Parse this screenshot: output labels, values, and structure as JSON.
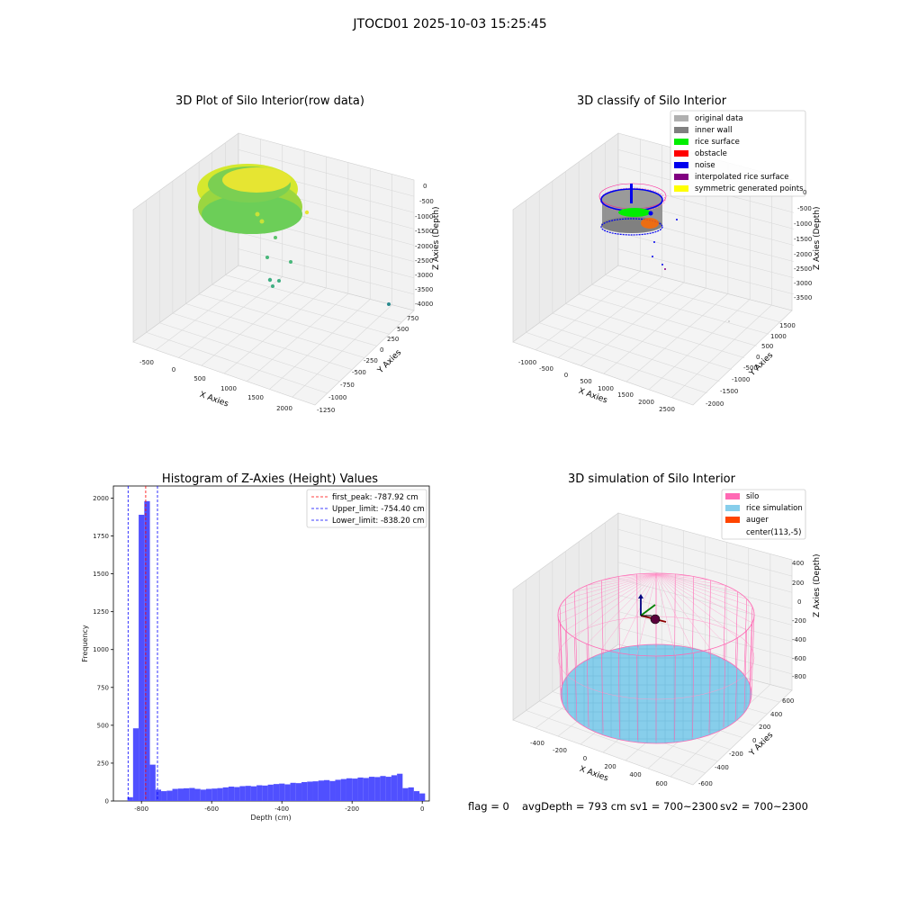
{
  "suptitle": "JTOCD01 2025-10-03 15:25:45",
  "panel_tl": {
    "title": "3D Plot of Silo Interior(row data)",
    "xlabel": "X Axies",
    "ylabel": "Y Axies",
    "zlabel": "Z Axies (Depth)",
    "xticks": [
      "-500",
      "0",
      "500",
      "1000",
      "1500",
      "2000"
    ],
    "yticks": [
      "-1250",
      "-1000",
      "-750",
      "-500",
      "-250",
      "0",
      "250",
      "500",
      "750"
    ],
    "zticks": [
      "0",
      "-500",
      "-1000",
      "-1500",
      "-2000",
      "-2500",
      "-3000",
      "-3500",
      "-4000"
    ]
  },
  "panel_tr": {
    "title": "3D classify of Silo Interior",
    "xlabel": "X Axies",
    "ylabel": "Y Axies",
    "zlabel": "Z Axies (Depth)",
    "xticks": [
      "-1000",
      "-500",
      "0",
      "500",
      "1000",
      "1500",
      "2000",
      "2500"
    ],
    "yticks": [
      "-2000",
      "-1500",
      "-1000",
      "-500",
      "0",
      "500",
      "1000",
      "1500"
    ],
    "zticks": [
      "0",
      "-500",
      "-1000",
      "-1500",
      "-2000",
      "-2500",
      "-3000",
      "-3500"
    ],
    "legend": [
      {
        "label": "original data",
        "color": "#b0b0b0"
      },
      {
        "label": "inner wall",
        "color": "#808080"
      },
      {
        "label": "rice surface",
        "color": "#00ee00"
      },
      {
        "label": "obstacle",
        "color": "#ff0000"
      },
      {
        "label": "noise",
        "color": "#0000ee"
      },
      {
        "label": "interpolated rice surface",
        "color": "#800080"
      },
      {
        "label": "symmetric generated points",
        "color": "#ffff00"
      }
    ]
  },
  "panel_bl": {
    "title": "Histogram of Z-Axies (Height) Values",
    "xlabel": "Depth (cm)",
    "ylabel": "Frequency",
    "xticks": [
      "-800",
      "-600",
      "-400",
      "-200",
      "0"
    ],
    "yticks": [
      "0",
      "250",
      "500",
      "750",
      "1000",
      "1250",
      "1500",
      "1750",
      "2000"
    ],
    "legend": [
      {
        "label": "first_peak: -787.92 cm",
        "color": "#ff0000"
      },
      {
        "label": "Upper_limit: -754.40 cm",
        "color": "#0000ff"
      },
      {
        "label": "Lower_limit: -838.20 cm",
        "color": "#0000ff"
      }
    ]
  },
  "panel_br": {
    "title": "3D simulation of Silo Interior",
    "xlabel": "X Axies",
    "ylabel": "Y Axies",
    "zlabel": "Z Axies (Depth)",
    "xticks": [
      "-400",
      "-200",
      "0",
      "200",
      "400",
      "600"
    ],
    "yticks": [
      "-600",
      "-400",
      "-200",
      "0",
      "200",
      "400",
      "600"
    ],
    "zticks": [
      "400",
      "200",
      "0",
      "-200",
      "-400",
      "-600",
      "-800"
    ],
    "legend": [
      {
        "label": "silo",
        "color": "#ff69b4"
      },
      {
        "label": "rice simulation",
        "color": "#87ceeb"
      },
      {
        "label": "auger",
        "color": "#ff4500"
      },
      {
        "label": "center(113,-5)",
        "color": "#ffffff"
      }
    ]
  },
  "footer": {
    "flag": "flag = 0",
    "avg": "avgDepth = 793 cm",
    "sv1": "sv1 = 700~2300",
    "sv2": "sv2 = 700~2300"
  },
  "chart_data": [
    {
      "type": "scatter",
      "title": "3D Plot of Silo Interior(row data)",
      "xlabel": "X Axies",
      "ylabel": "Y Axies",
      "zlabel": "Z Axies (Depth)",
      "xlim": [
        -600,
        2200
      ],
      "ylim": [
        -1300,
        800
      ],
      "zlim": [
        -4000,
        0
      ]
    },
    {
      "type": "scatter",
      "title": "3D classify of Silo Interior",
      "xlabel": "X Axies",
      "ylabel": "Y Axies",
      "zlabel": "Z Axies (Depth)",
      "xlim": [
        -1100,
        2700
      ],
      "ylim": [
        -2100,
        1700
      ],
      "zlim": [
        -3700,
        0
      ],
      "series": [
        {
          "name": "original data"
        },
        {
          "name": "inner wall"
        },
        {
          "name": "rice surface"
        },
        {
          "name": "obstacle"
        },
        {
          "name": "noise"
        },
        {
          "name": "interpolated rice surface"
        },
        {
          "name": "symmetric generated points"
        }
      ]
    },
    {
      "type": "bar",
      "title": "Histogram of Z-Axies (Height) Values",
      "xlabel": "Depth (cm)",
      "ylabel": "Frequency",
      "xlim": [
        -880,
        20
      ],
      "ylim": [
        0,
        2080
      ],
      "bin_width": 16,
      "bin_start": [
        -840,
        -824,
        -808,
        -792,
        -776,
        -760,
        -744,
        -728,
        -712,
        -696,
        -680,
        -664,
        -648,
        -632,
        -616,
        -600,
        -584,
        -568,
        -552,
        -536,
        -520,
        -504,
        -488,
        -472,
        -456,
        -440,
        -424,
        -408,
        -392,
        -376,
        -360,
        -344,
        -328,
        -312,
        -296,
        -280,
        -264,
        -248,
        -232,
        -216,
        -200,
        -184,
        -168,
        -152,
        -136,
        -120,
        -104,
        -88,
        -72,
        -56,
        -40,
        -24,
        -8
      ],
      "values": [
        25,
        480,
        1890,
        1980,
        240,
        75,
        65,
        68,
        80,
        82,
        84,
        86,
        80,
        75,
        80,
        82,
        85,
        90,
        95,
        92,
        98,
        100,
        97,
        104,
        102,
        108,
        112,
        115,
        110,
        120,
        118,
        125,
        128,
        130,
        135,
        138,
        132,
        140,
        145,
        150,
        148,
        155,
        152,
        160,
        158,
        165,
        160,
        170,
        180,
        85,
        90,
        65,
        50
      ],
      "vlines": [
        {
          "label": "first_peak: -787.92 cm",
          "x": -787.92,
          "color": "#ff0000"
        },
        {
          "label": "Upper_limit: -754.40 cm",
          "x": -754.4,
          "color": "#0000ff"
        },
        {
          "label": "Lower_limit: -838.20 cm",
          "x": -838.2,
          "color": "#0000ff"
        }
      ],
      "bar_color": "#5050ff"
    },
    {
      "type": "scatter",
      "title": "3D simulation of Silo Interior",
      "xlabel": "X Axies",
      "ylabel": "Y Axies",
      "zlabel": "Z Axies (Depth)",
      "xlim": [
        -500,
        700
      ],
      "ylim": [
        -650,
        650
      ],
      "zlim": [
        -900,
        450
      ],
      "series": [
        {
          "name": "silo"
        },
        {
          "name": "rice simulation"
        },
        {
          "name": "auger"
        },
        {
          "name": "center(113,-5)"
        }
      ]
    }
  ]
}
